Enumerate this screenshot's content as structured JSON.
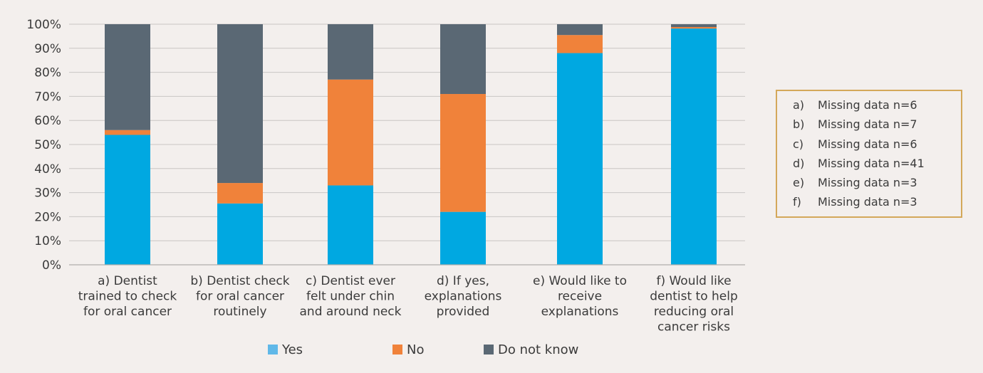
{
  "chart_data": {
    "type": "bar",
    "stacked": true,
    "categories": [
      [
        "a) Dentist",
        "trained to check",
        "for oral cancer"
      ],
      [
        "b) Dentist check",
        "for oral cancer",
        "routinely"
      ],
      [
        "c) Dentist ever",
        "felt under chin",
        "and around neck"
      ],
      [
        "d) If yes,",
        "explanations",
        "provided"
      ],
      [
        "e) Would like to",
        "receive",
        "explanations"
      ],
      [
        "f) Would like",
        "dentist to help",
        "reducing oral",
        "cancer risks"
      ]
    ],
    "series": [
      {
        "name": "Yes",
        "color": "#00a8e1",
        "values": [
          54,
          25.5,
          33,
          22,
          88,
          98.2
        ]
      },
      {
        "name": "No",
        "color": "#f0823a",
        "values": [
          2,
          8.5,
          44,
          49,
          7.5,
          0.6
        ]
      },
      {
        "name": "Do not know",
        "color": "#5a6874",
        "values": [
          44,
          66,
          23,
          29,
          4.5,
          1.2
        ]
      }
    ],
    "y_ticks": [
      "0%",
      "10%",
      "20%",
      "30%",
      "40%",
      "50%",
      "60%",
      "70%",
      "80%",
      "90%",
      "100%"
    ],
    "ylim": [
      0,
      100
    ],
    "grid": true,
    "legend": "bottom",
    "legend_colors": [
      "#60b8e8",
      "#f0823a",
      "#5a6874"
    ]
  },
  "notes": [
    {
      "letter": "a)",
      "text": "Missing data n=6"
    },
    {
      "letter": "b)",
      "text": "Missing data n=7"
    },
    {
      "letter": "c)",
      "text": "Missing data n=6"
    },
    {
      "letter": "d)",
      "text": "Missing data n=41"
    },
    {
      "letter": "e)",
      "text": "Missing data n=3"
    },
    {
      "letter": "f)",
      "text": "Missing data n=3"
    }
  ]
}
